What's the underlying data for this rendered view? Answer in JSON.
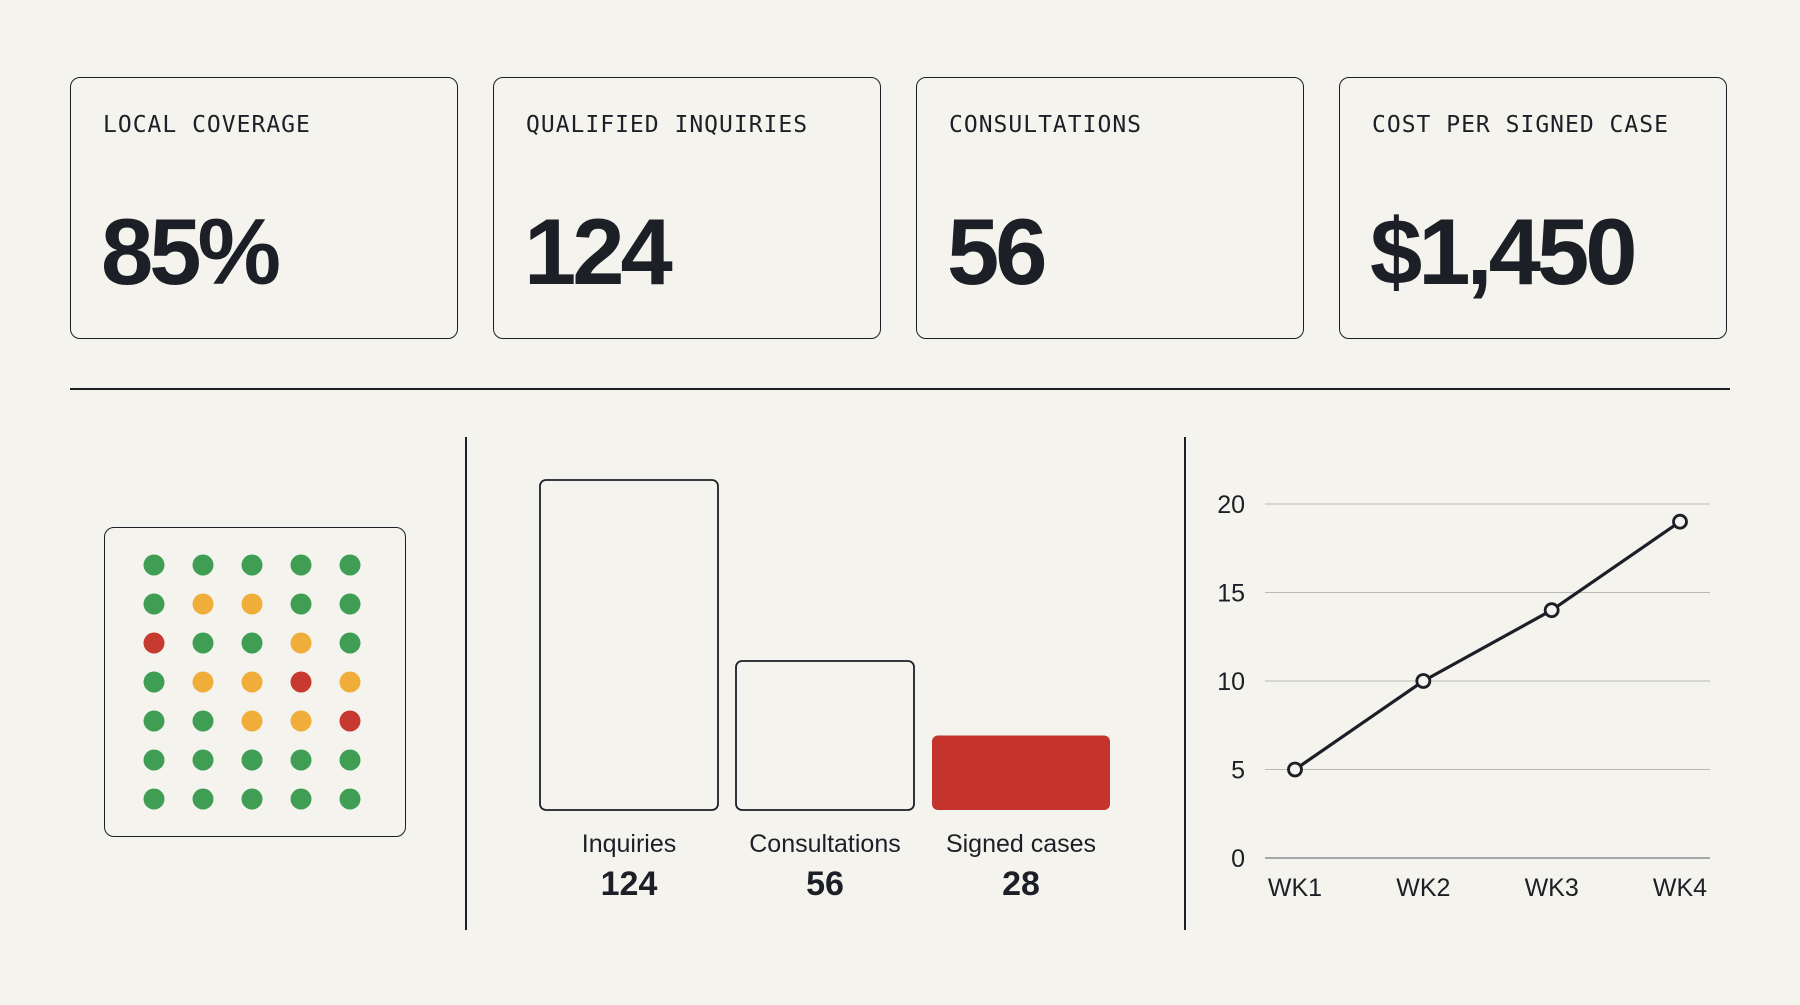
{
  "kpis": [
    {
      "label": "LOCAL COVERAGE",
      "value": "85%"
    },
    {
      "label": "QUALIFIED INQUIRIES",
      "value": "124"
    },
    {
      "label": "CONSULTATIONS",
      "value": "56"
    },
    {
      "label": "COST PER SIGNED CASE",
      "value": "$1,450"
    }
  ],
  "colors": {
    "ink": "#1c1f26",
    "background": "#f4f3ee",
    "good": "#3f9e53",
    "warn": "#f0ad3a",
    "bad": "#c63a2f",
    "highlight": "#c4342c"
  },
  "chart_data": [
    {
      "type": "heatmap",
      "rows": 7,
      "cols": 5,
      "status_grid": [
        [
          "good",
          "good",
          "good",
          "good",
          "good"
        ],
        [
          "good",
          "warn",
          "warn",
          "good",
          "good"
        ],
        [
          "bad",
          "good",
          "good",
          "warn",
          "good"
        ],
        [
          "good",
          "warn",
          "warn",
          "bad",
          "warn"
        ],
        [
          "good",
          "good",
          "warn",
          "warn",
          "bad"
        ],
        [
          "good",
          "good",
          "good",
          "good",
          "good"
        ],
        [
          "good",
          "good",
          "good",
          "good",
          "good"
        ]
      ]
    },
    {
      "type": "bar",
      "categories": [
        "Inquiries",
        "Consultations",
        "Signed cases"
      ],
      "values": [
        124,
        56,
        28
      ],
      "value_labels": [
        "124",
        "56",
        "28"
      ],
      "highlight_index": 2
    },
    {
      "type": "line",
      "categories": [
        "WK1",
        "WK2",
        "WK3",
        "WK4"
      ],
      "values": [
        5,
        10,
        14,
        19
      ],
      "ylim": [
        0,
        20
      ],
      "yticks": [
        0,
        5,
        10,
        15,
        20
      ],
      "grid": true
    }
  ]
}
